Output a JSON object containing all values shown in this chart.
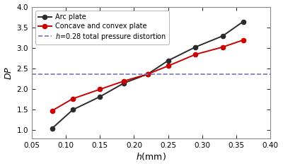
{
  "arc_plate_x": [
    0.08,
    0.11,
    0.15,
    0.185,
    0.22,
    0.25,
    0.29,
    0.33,
    0.36
  ],
  "arc_plate_y": [
    1.05,
    1.5,
    1.82,
    2.15,
    2.37,
    2.7,
    3.03,
    3.3,
    3.65
  ],
  "concave_convex_x": [
    0.08,
    0.11,
    0.15,
    0.185,
    0.22,
    0.25,
    0.29,
    0.33,
    0.36
  ],
  "concave_convex_y": [
    1.48,
    1.77,
    2.0,
    2.2,
    2.37,
    2.57,
    2.85,
    3.03,
    3.2
  ],
  "hline_y": 2.37,
  "xlim": [
    0.05,
    0.4
  ],
  "ylim": [
    0.8,
    4.0
  ],
  "xlabel": "h(mm)",
  "ylabel": "DP",
  "yticks": [
    1.0,
    1.5,
    2.0,
    2.5,
    3.0,
    3.5,
    4.0
  ],
  "xticks": [
    0.05,
    0.1,
    0.15,
    0.2,
    0.25,
    0.3,
    0.35,
    0.4
  ],
  "arc_plate_label": "Arc plate",
  "concave_convex_label": "Concave and convex plate",
  "arc_color": "#2b2b2b",
  "concave_color": "#cc0000",
  "hline_color": "#7777bb",
  "bg_color": "#ffffff",
  "figure_bg": "#ffffff",
  "spine_color": "#888888",
  "tick_labelsize": 7.5,
  "legend_fontsize": 7.0,
  "label_fontsize": 9.0
}
